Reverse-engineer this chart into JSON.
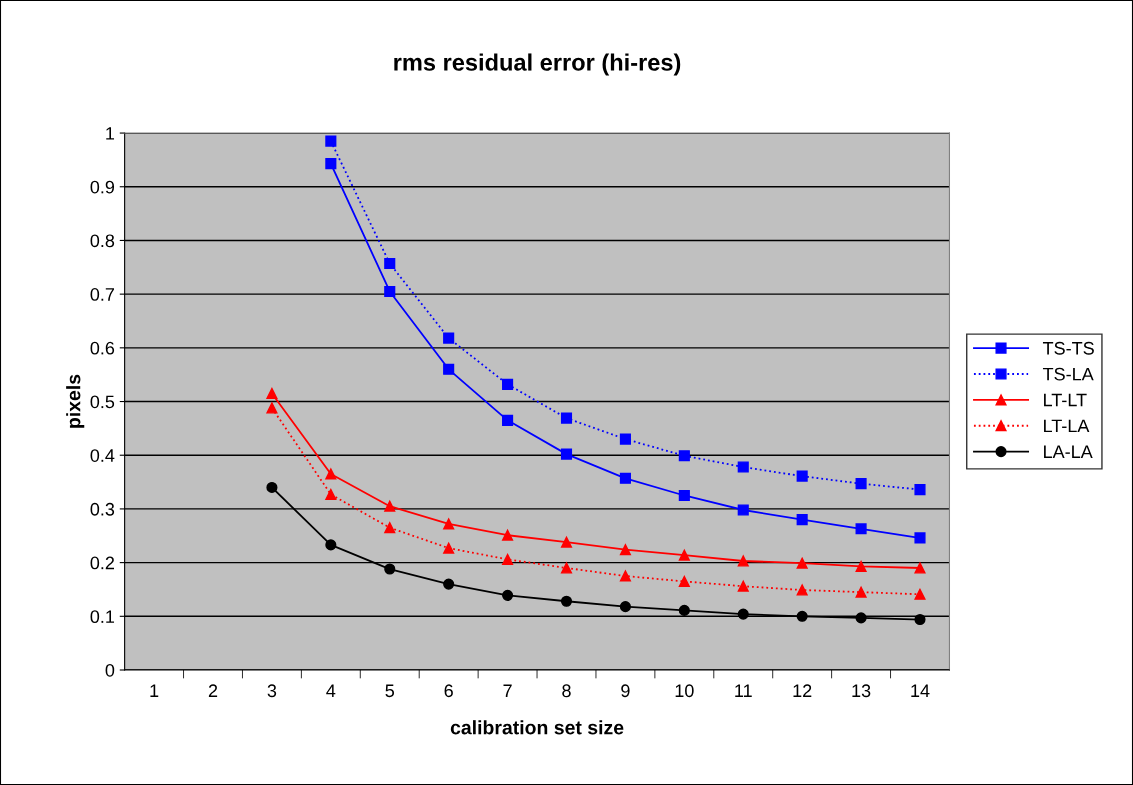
{
  "chart_data": {
    "type": "line",
    "title": "rms residual error (hi-res)",
    "xlabel": "calibration set size",
    "ylabel": "pixels",
    "categories": [
      "1",
      "2",
      "3",
      "4",
      "5",
      "6",
      "7",
      "8",
      "9",
      "10",
      "11",
      "12",
      "13",
      "14"
    ],
    "series": [
      {
        "name": "TS-TS",
        "color": "#0000ff",
        "marker": "square",
        "line_style": "solid",
        "values": [
          null,
          null,
          null,
          0.943,
          0.705,
          0.56,
          0.465,
          0.402,
          0.357,
          0.325,
          0.298,
          0.28,
          0.263,
          0.246
        ]
      },
      {
        "name": "TS-LA",
        "color": "#0000ff",
        "marker": "square",
        "line_style": "dotted",
        "values": [
          null,
          null,
          null,
          0.985,
          0.757,
          0.618,
          0.532,
          0.469,
          0.43,
          0.399,
          0.378,
          0.361,
          0.347,
          0.336
        ]
      },
      {
        "name": "LT-LT",
        "color": "#ff0000",
        "marker": "triangle",
        "line_style": "solid",
        "values": [
          null,
          null,
          0.515,
          0.365,
          0.305,
          0.272,
          0.251,
          0.238,
          0.224,
          0.214,
          0.203,
          0.199,
          0.193,
          0.19
        ]
      },
      {
        "name": "LT-LA",
        "color": "#ff0000",
        "marker": "triangle",
        "line_style": "dotted",
        "values": [
          null,
          null,
          0.488,
          0.327,
          0.265,
          0.227,
          0.206,
          0.19,
          0.175,
          0.165,
          0.156,
          0.149,
          0.145,
          0.141
        ]
      },
      {
        "name": "LA-LA",
        "color": "#000000",
        "marker": "circle",
        "line_style": "solid",
        "values": [
          null,
          null,
          0.34,
          0.233,
          0.188,
          0.16,
          0.139,
          0.128,
          0.118,
          0.111,
          0.104,
          0.1,
          0.097,
          0.094
        ]
      }
    ],
    "ylim": [
      0,
      1
    ],
    "yticks": [
      0,
      0.1,
      0.2,
      0.3,
      0.4,
      0.5,
      0.6,
      0.7,
      0.8,
      0.9,
      1
    ],
    "grid": "y",
    "legend": "right"
  }
}
